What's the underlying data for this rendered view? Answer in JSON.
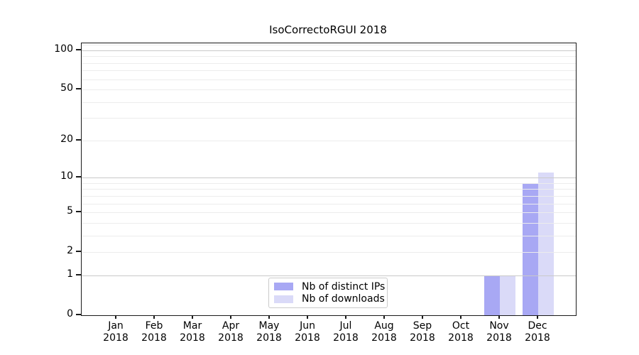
{
  "chart_data": {
    "type": "bar",
    "title": "IsoCorrectoRGUI 2018",
    "categories": [
      "Jan 2018",
      "Feb 2018",
      "Mar 2018",
      "Apr 2018",
      "May 2018",
      "Jun 2018",
      "Jul 2018",
      "Aug 2018",
      "Sep 2018",
      "Oct 2018",
      "Nov 2018",
      "Dec 2018"
    ],
    "series": [
      {
        "name": "Nb of distinct IPs",
        "color": "#a8a8f4",
        "values": [
          0,
          0,
          0,
          0,
          0,
          0,
          0,
          0,
          0,
          0,
          1,
          9
        ]
      },
      {
        "name": "Nb of downloads",
        "color": "#dadaf8",
        "values": [
          0,
          0,
          0,
          0,
          0,
          0,
          0,
          0,
          0,
          0,
          1,
          11
        ]
      }
    ],
    "xlabel": "",
    "ylabel": "",
    "yscale": "log1p",
    "yticks": [
      0,
      1,
      2,
      5,
      10,
      20,
      50,
      100
    ],
    "ylim": [
      0,
      113
    ],
    "grid": true,
    "legend_position": "lower center"
  },
  "colors": {
    "bar_distinct_ips": "#a8a8f4",
    "bar_downloads": "#dadaf8",
    "grid_major": "#c9c9c9",
    "grid_minor": "#ececec",
    "axis": "#1a1a1a",
    "background": "#ffffff"
  }
}
